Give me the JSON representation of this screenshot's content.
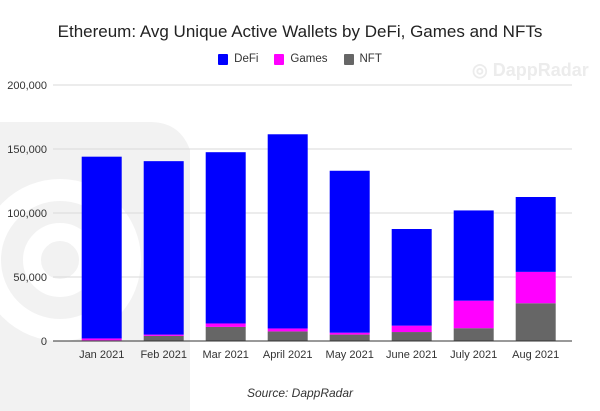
{
  "watermark": "DappRadar",
  "source": "Source: DappRadar",
  "colors": {
    "DeFi": "#0000ff",
    "Games": "#ff00ff",
    "NFT": "#666666",
    "grid": "#d9d9d9"
  },
  "chart_data": {
    "type": "bar",
    "stacked": true,
    "title": "Ethereum: Avg Unique Active Wallets by DeFi, Games and NFTs",
    "legend_position": "top",
    "grid": true,
    "ylim": [
      0,
      200000
    ],
    "yticks": [
      "0",
      "50,000",
      "100,000",
      "150,000",
      "200,000"
    ],
    "categories": [
      "Jan 2021",
      "Feb 2021",
      "Mar 2021",
      "April 2021",
      "May 2021",
      "June 2021",
      "July 2021",
      "Aug 2021"
    ],
    "series": [
      {
        "name": "NFT",
        "values": [
          500,
          4000,
          11000,
          7500,
          5000,
          7000,
          10000,
          29500
        ]
      },
      {
        "name": "Games",
        "values": [
          1500,
          1000,
          2700,
          2300,
          1500,
          5000,
          21500,
          24500
        ]
      },
      {
        "name": "DeFi",
        "values": [
          142000,
          135500,
          133800,
          151700,
          126500,
          75500,
          70500,
          58500
        ]
      }
    ]
  }
}
